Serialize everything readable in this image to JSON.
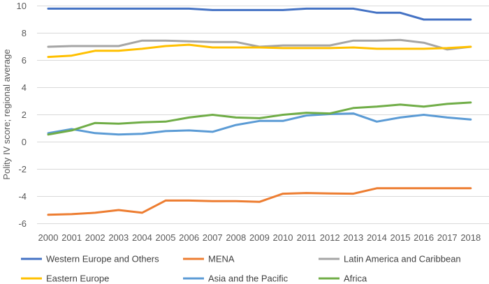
{
  "chart_data": {
    "type": "line",
    "title": "",
    "xlabel": "",
    "ylabel": "Polity IV score; regional average",
    "ylim": [
      -6,
      10
    ],
    "yticks": [
      -6,
      -4,
      -2,
      0,
      2,
      4,
      6,
      8,
      10
    ],
    "grid": true,
    "legend_position": "bottom",
    "x": [
      "2000",
      "2001",
      "2002",
      "2003",
      "2004",
      "2005",
      "2006",
      "2007",
      "2008",
      "2009",
      "2010",
      "2011",
      "2012",
      "2013",
      "2014",
      "2015",
      "2016",
      "2017",
      "2018"
    ],
    "series": [
      {
        "name": "Western Europe and Others",
        "color": "#4472c4",
        "values": [
          9.8,
          9.8,
          9.8,
          9.8,
          9.8,
          9.8,
          9.8,
          9.7,
          9.7,
          9.7,
          9.7,
          9.8,
          9.8,
          9.8,
          9.5,
          9.5,
          9.0,
          9.0,
          9.0
        ]
      },
      {
        "name": "MENA",
        "color": "#ed7d31",
        "values": [
          -5.35,
          -5.3,
          -5.2,
          -5.0,
          -5.2,
          -4.3,
          -4.3,
          -4.35,
          -4.35,
          -4.4,
          -3.8,
          -3.75,
          -3.78,
          -3.8,
          -3.4,
          -3.4,
          -3.4,
          -3.4,
          -3.4
        ]
      },
      {
        "name": "Latin America and Caribbean",
        "color": "#a5a5a5",
        "values": [
          7.0,
          7.05,
          7.05,
          7.05,
          7.45,
          7.45,
          7.4,
          7.35,
          7.35,
          7.0,
          7.1,
          7.1,
          7.1,
          7.45,
          7.45,
          7.5,
          7.3,
          6.8,
          7.0
        ]
      },
      {
        "name": "Eastern Europe",
        "color": "#ffc000",
        "values": [
          6.25,
          6.35,
          6.7,
          6.7,
          6.85,
          7.05,
          7.15,
          6.95,
          6.95,
          6.95,
          6.9,
          6.9,
          6.9,
          6.95,
          6.85,
          6.85,
          6.85,
          6.9,
          7.0
        ]
      },
      {
        "name": "Asia and the Pacific",
        "color": "#5b9bd5",
        "values": [
          0.65,
          0.95,
          0.65,
          0.55,
          0.6,
          0.8,
          0.85,
          0.75,
          1.25,
          1.55,
          1.55,
          1.95,
          2.05,
          2.1,
          1.5,
          1.8,
          2.0,
          1.8,
          1.65
        ]
      },
      {
        "name": "Africa",
        "color": "#70ad47",
        "values": [
          0.55,
          0.85,
          1.4,
          1.35,
          1.45,
          1.5,
          1.8,
          2.0,
          1.8,
          1.75,
          2.0,
          2.15,
          2.1,
          2.5,
          2.6,
          2.75,
          2.6,
          2.8,
          2.9
        ]
      }
    ]
  }
}
